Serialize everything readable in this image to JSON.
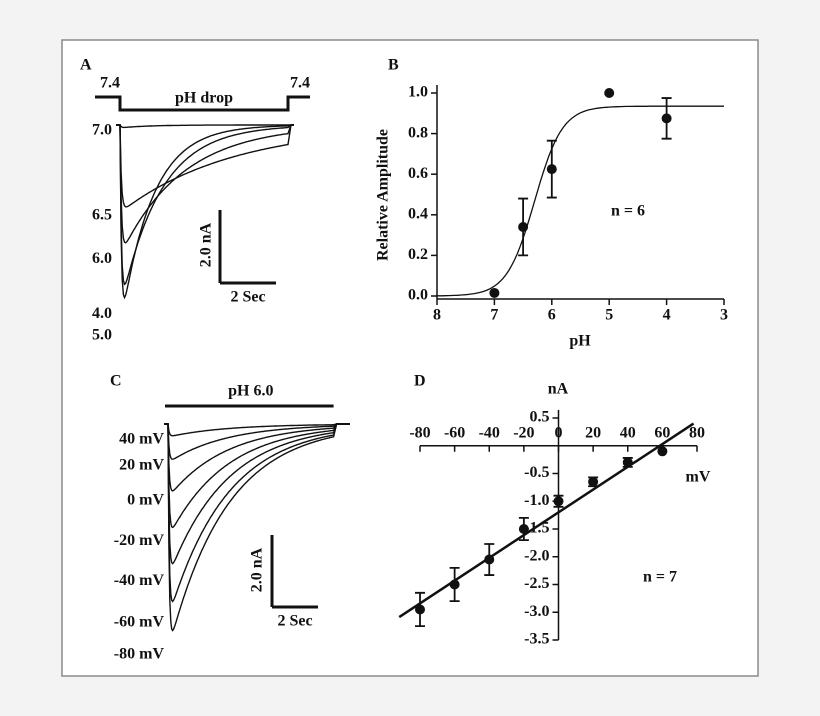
{
  "chart_data": [
    {
      "type": "traces",
      "panel": "A",
      "color": "#111111",
      "duration_s": 6,
      "stimulus": {
        "label": "pH drop",
        "before": "7.4",
        "after": "7.4"
      },
      "series": [
        {
          "name": "7.0",
          "peak": 0.08,
          "decay_s": 1.0
        },
        {
          "name": "6.5",
          "peak": 2.4,
          "decay_s": 4.0
        },
        {
          "name": "6.0",
          "peak": 3.6,
          "decay_s": 2.2
        },
        {
          "name": "4.0",
          "peak": 5.1,
          "decay_s": 1.4
        },
        {
          "name": "5.0",
          "peak": 5.7,
          "decay_s": 1.1
        }
      ],
      "scale_y": {
        "value": 2,
        "label": "2.0 nA"
      },
      "scale_x": {
        "value": 2,
        "label": "2 Sec"
      }
    },
    {
      "type": "scatter",
      "panel": "B",
      "color": "#111111",
      "x_label": "pH",
      "y_label": "Relative Amplitude",
      "annotation": "n = 6",
      "x": [
        7,
        6.5,
        6,
        5,
        4
      ],
      "values": [
        0.015,
        0.34,
        0.625,
        1.0,
        0.875
      ],
      "errors": [
        null,
        0.14,
        0.14,
        null,
        0.1
      ],
      "xlim": [
        8,
        3
      ],
      "ylim": [
        0,
        1
      ],
      "xticks": [
        8,
        7,
        6,
        5,
        4,
        3
      ],
      "yticks": [
        {
          "value": 0,
          "label": "0.0"
        },
        0.2,
        0.4,
        0.6,
        0.8,
        {
          "value": 1,
          "label": "1.0"
        }
      ],
      "fit": {
        "top": 0.935,
        "half": 6.3,
        "hill": 1.8
      }
    },
    {
      "type": "traces",
      "panel": "C",
      "color": "#111111",
      "duration_s": 7.2,
      "stimulus": {
        "label": "pH 6.0"
      },
      "series": [
        {
          "name": "40 mV",
          "peak": 0.36,
          "decay_s": 2.5
        },
        {
          "name": "20 mV",
          "peak": 1.08,
          "decay_s": 2.5
        },
        {
          "name": "0 mV",
          "peak": 2.05,
          "decay_s": 2.5
        },
        {
          "name": "-20 mV",
          "peak": 3.17,
          "decay_s": 2.5
        },
        {
          "name": "-40 mV",
          "peak": 4.28,
          "decay_s": 2.5
        },
        {
          "name": "-60 mV",
          "peak": 5.44,
          "decay_s": 2.5
        },
        {
          "name": "-80 mV",
          "peak": 6.33,
          "decay_s": 2.5
        }
      ],
      "scale_y": {
        "value": 2,
        "label": "2.0 nA"
      },
      "scale_x": {
        "value": 2,
        "label": "2 Sec"
      }
    },
    {
      "type": "scatter",
      "panel": "D",
      "color": "#111111",
      "x_label": "mV",
      "y_label": "nA",
      "annotation": "n = 7",
      "x": [
        -80,
        -60,
        -40,
        -20,
        0,
        20,
        40,
        60
      ],
      "values": [
        -2.95,
        -2.5,
        -2.05,
        -1.5,
        -1.0,
        -0.65,
        -0.3,
        -0.1
      ],
      "errors": [
        0.3,
        0.3,
        0.28,
        0.2,
        0.1,
        0.08,
        0.08,
        null
      ],
      "xlim": [
        -80,
        80
      ],
      "ylim": [
        -3.5,
        0.5
      ],
      "xticks": [
        -80,
        -60,
        -40,
        -20,
        0,
        20,
        40,
        60,
        80
      ],
      "yticks": [
        0.5,
        -0.5,
        {
          "value": -1,
          "label": "-1.0"
        },
        -1.5,
        {
          "value": -2,
          "label": "-2.0"
        },
        -2.5,
        {
          "value": -3,
          "label": "-3.0"
        },
        -3.5
      ],
      "fit": {
        "slope": 0.0205,
        "intercept": -1.2,
        "from": -92,
        "to": 78
      }
    }
  ]
}
